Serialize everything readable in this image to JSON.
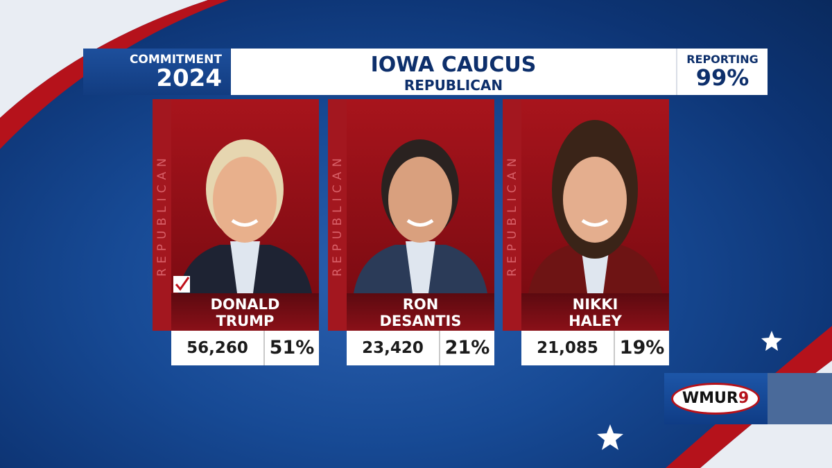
{
  "branding": {
    "line1": "COMMITMENT",
    "line2": "2024"
  },
  "header": {
    "title": "IOWA CAUCUS",
    "subtitle": "REPUBLICAN",
    "reporting_label": "REPORTING",
    "reporting_value": "99%"
  },
  "candidates": [
    {
      "party": "REPUBLICAN",
      "first": "DONALD",
      "last": "TRUMP",
      "votes": "56,260",
      "pct": "51%",
      "winner": true
    },
    {
      "party": "REPUBLICAN",
      "first": "RON",
      "last": "DESANTIS",
      "votes": "23,420",
      "pct": "21%",
      "winner": false
    },
    {
      "party": "REPUBLICAN",
      "first": "NIKKI",
      "last": "HALEY",
      "votes": "21,085",
      "pct": "19%",
      "winner": false
    }
  ],
  "logo": {
    "text": "WMUR",
    "number": "9"
  }
}
